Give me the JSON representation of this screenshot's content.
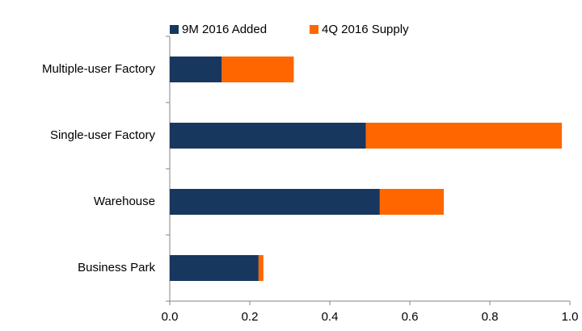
{
  "chart_data": {
    "type": "stacked-barh",
    "categories": [
      "Multiple-user Factory",
      "Single-user Factory",
      "Warehouse",
      "Business Park"
    ],
    "series": [
      {
        "name": "9M 2016 Added",
        "color": "#17375e",
        "values": [
          0.13,
          0.49,
          0.525,
          0.222
        ]
      },
      {
        "name": "4Q 2016 Supply",
        "color": "#ff6600",
        "values": [
          0.18,
          0.49,
          0.16,
          0.012
        ]
      }
    ],
    "xlim": [
      0,
      1.0
    ],
    "xticks": [
      {
        "value": 0,
        "label": "0.0"
      },
      0.2,
      0.4,
      0.6,
      0.8,
      {
        "value": 1.0,
        "label": "1.0"
      }
    ],
    "legend": "top"
  }
}
